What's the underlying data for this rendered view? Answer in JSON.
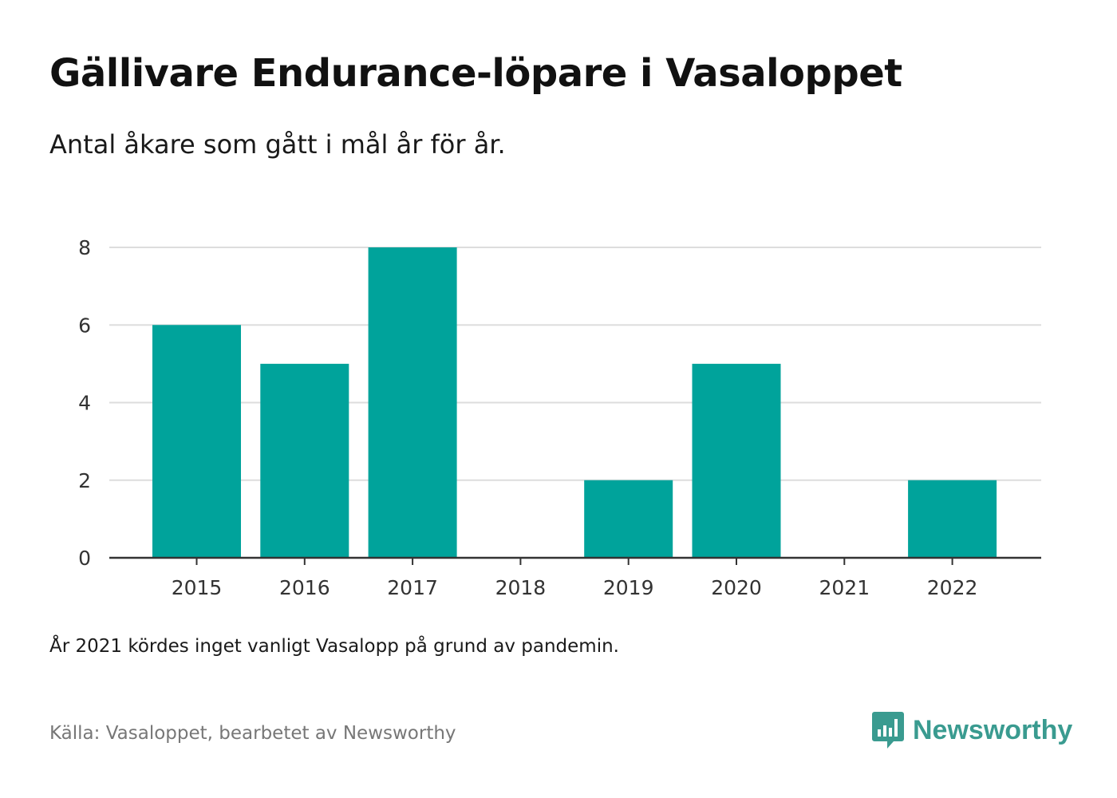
{
  "header": {
    "title": "Gällivare Endurance-löpare i Vasaloppet",
    "subtitle": "Antal åkare som gått i mål år för år."
  },
  "footer": {
    "note": "År 2021 kördes inget vanligt Vasalopp på grund av pandemin.",
    "source": "Källa: Vasaloppet, bearbetet av Newsworthy",
    "brand": "Newsworthy",
    "brand_icon": "newsworthy-logo-icon"
  },
  "colors": {
    "bar": "#00a39b",
    "grid": "#dddddd",
    "axis": "#333333",
    "brand": "#3a9b90"
  },
  "chart_data": {
    "type": "bar",
    "categories": [
      "2015",
      "2016",
      "2017",
      "2018",
      "2019",
      "2020",
      "2021",
      "2022"
    ],
    "values": [
      6,
      5,
      8,
      0,
      2,
      5,
      0,
      2
    ],
    "title": "Gällivare Endurance-löpare i Vasaloppet",
    "subtitle": "Antal åkare som gått i mål år för år.",
    "xlabel": "",
    "ylabel": "",
    "ylim": [
      0,
      8
    ],
    "yticks": [
      0,
      2,
      4,
      6,
      8
    ],
    "grid": true,
    "legend": "none"
  }
}
